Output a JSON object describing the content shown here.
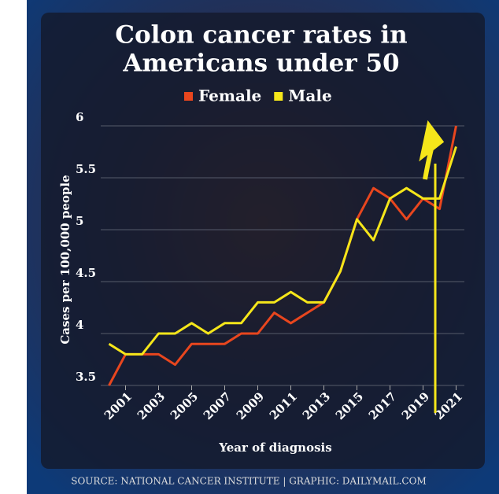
{
  "chart_data": {
    "type": "line",
    "title": [
      "Colon cancer rates in",
      "Americans under 50"
    ],
    "x": [
      2000,
      2001,
      2002,
      2003,
      2004,
      2005,
      2006,
      2007,
      2008,
      2009,
      2010,
      2011,
      2012,
      2013,
      2014,
      2015,
      2016,
      2017,
      2018,
      2019,
      2020,
      2021
    ],
    "series": [
      {
        "name": "Female",
        "color": "#e8461e",
        "values": [
          3.5,
          3.8,
          3.8,
          3.8,
          3.7,
          3.9,
          3.9,
          3.9,
          4.0,
          4.0,
          4.2,
          4.1,
          4.2,
          4.3,
          4.6,
          5.1,
          5.4,
          5.3,
          5.1,
          5.3,
          5.2,
          6.0
        ]
      },
      {
        "name": "Male",
        "color": "#f5e61a",
        "values": [
          3.9,
          3.8,
          3.8,
          4.0,
          4.0,
          4.1,
          4.0,
          4.1,
          4.1,
          4.3,
          4.3,
          4.4,
          4.3,
          4.3,
          4.6,
          5.1,
          4.9,
          5.3,
          5.4,
          5.3,
          5.3,
          5.8
        ]
      }
    ],
    "xlim": [
      1999.5,
      2021.5
    ],
    "xticks": [
      2001,
      2003,
      2005,
      2007,
      2009,
      2011,
      2013,
      2015,
      2017,
      2019,
      2021
    ],
    "ylim": [
      3.5,
      6
    ],
    "yticks": [
      3.5,
      4,
      4.5,
      5,
      5.5,
      6
    ],
    "grid": true,
    "xlabel": "Year of diagnosis",
    "ylabel": "Cases per 100,000 people",
    "source": "SOURCE: NATIONAL CANCER INSTITUTE  |  GRAPHIC: DAILYMAIL.COM"
  }
}
